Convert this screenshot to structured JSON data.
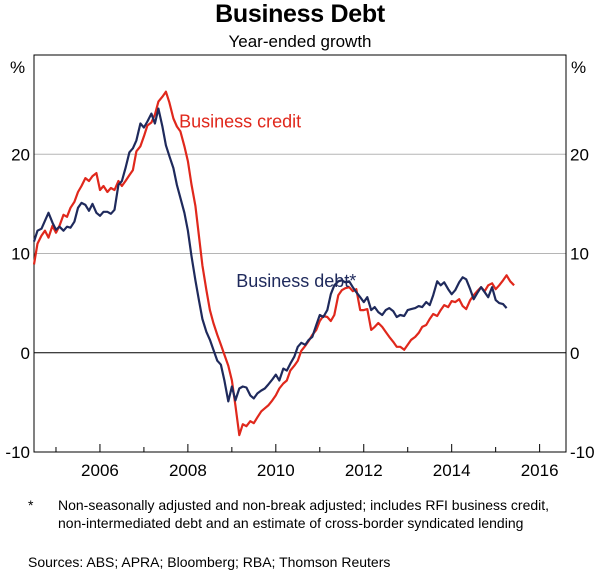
{
  "chart_data": {
    "type": "line",
    "title": "Business Debt",
    "subtitle": "Year-ended growth",
    "y_unit_left": "%",
    "y_unit_right": "%",
    "ylim": [
      -10,
      30
    ],
    "xlim": [
      2004.5,
      2016.6
    ],
    "y_ticks": [
      -10,
      0,
      10,
      20
    ],
    "x_ticks": [
      "2006",
      "2008",
      "2010",
      "2012",
      "2014",
      "2016"
    ],
    "x_tick_values": [
      2006,
      2008,
      2010,
      2012,
      2014,
      2016
    ],
    "grid": true,
    "series": [
      {
        "name": "Business credit",
        "color": "#e0281c",
        "points": [
          [
            2004.5,
            8.9
          ],
          [
            2004.58,
            11.0
          ],
          [
            2004.67,
            11.8
          ],
          [
            2004.75,
            12.3
          ],
          [
            2004.83,
            11.6
          ],
          [
            2004.92,
            12.8
          ],
          [
            2005.0,
            12.1
          ],
          [
            2005.08,
            12.8
          ],
          [
            2005.17,
            13.9
          ],
          [
            2005.25,
            13.7
          ],
          [
            2005.33,
            14.6
          ],
          [
            2005.42,
            15.2
          ],
          [
            2005.5,
            16.2
          ],
          [
            2005.58,
            16.8
          ],
          [
            2005.67,
            17.6
          ],
          [
            2005.75,
            17.3
          ],
          [
            2005.83,
            17.8
          ],
          [
            2005.92,
            18.1
          ],
          [
            2006.0,
            16.4
          ],
          [
            2006.08,
            16.8
          ],
          [
            2006.17,
            16.2
          ],
          [
            2006.25,
            16.6
          ],
          [
            2006.33,
            16.4
          ],
          [
            2006.42,
            17.3
          ],
          [
            2006.5,
            16.8
          ],
          [
            2006.58,
            17.3
          ],
          [
            2006.67,
            17.9
          ],
          [
            2006.75,
            18.4
          ],
          [
            2006.83,
            20.3
          ],
          [
            2006.92,
            20.8
          ],
          [
            2007.0,
            21.8
          ],
          [
            2007.08,
            22.9
          ],
          [
            2007.17,
            23.2
          ],
          [
            2007.25,
            24.0
          ],
          [
            2007.33,
            25.3
          ],
          [
            2007.42,
            25.8
          ],
          [
            2007.5,
            26.3
          ],
          [
            2007.58,
            25.2
          ],
          [
            2007.67,
            23.6
          ],
          [
            2007.75,
            22.8
          ],
          [
            2007.83,
            22.3
          ],
          [
            2007.92,
            20.8
          ],
          [
            2008.0,
            19.3
          ],
          [
            2008.08,
            17.0
          ],
          [
            2008.17,
            14.8
          ],
          [
            2008.25,
            11.8
          ],
          [
            2008.33,
            8.8
          ],
          [
            2008.42,
            6.3
          ],
          [
            2008.5,
            4.3
          ],
          [
            2008.58,
            3.0
          ],
          [
            2008.67,
            1.8
          ],
          [
            2008.75,
            0.8
          ],
          [
            2008.83,
            -0.2
          ],
          [
            2008.92,
            -1.3
          ],
          [
            2009.0,
            -2.8
          ],
          [
            2009.08,
            -5.3
          ],
          [
            2009.17,
            -8.3
          ],
          [
            2009.25,
            -7.2
          ],
          [
            2009.33,
            -7.4
          ],
          [
            2009.42,
            -6.9
          ],
          [
            2009.5,
            -7.1
          ],
          [
            2009.58,
            -6.5
          ],
          [
            2009.67,
            -5.9
          ],
          [
            2009.75,
            -5.6
          ],
          [
            2009.83,
            -5.3
          ],
          [
            2009.92,
            -4.8
          ],
          [
            2010.0,
            -4.3
          ],
          [
            2010.08,
            -3.6
          ],
          [
            2010.17,
            -3.1
          ],
          [
            2010.25,
            -2.8
          ],
          [
            2010.33,
            -1.8
          ],
          [
            2010.42,
            -1.3
          ],
          [
            2010.5,
            -0.8
          ],
          [
            2010.58,
            0.2
          ],
          [
            2010.67,
            0.7
          ],
          [
            2010.75,
            1.2
          ],
          [
            2010.83,
            1.8
          ],
          [
            2010.92,
            2.3
          ],
          [
            2011.0,
            3.2
          ],
          [
            2011.08,
            3.7
          ],
          [
            2011.17,
            3.6
          ],
          [
            2011.25,
            3.2
          ],
          [
            2011.33,
            3.8
          ],
          [
            2011.42,
            5.8
          ],
          [
            2011.5,
            6.3
          ],
          [
            2011.58,
            6.5
          ],
          [
            2011.67,
            6.6
          ],
          [
            2011.75,
            6.2
          ],
          [
            2011.83,
            6.4
          ],
          [
            2011.92,
            4.3
          ],
          [
            2012.0,
            4.3
          ],
          [
            2012.08,
            4.4
          ],
          [
            2012.17,
            2.3
          ],
          [
            2012.25,
            2.6
          ],
          [
            2012.33,
            3.0
          ],
          [
            2012.42,
            2.6
          ],
          [
            2012.5,
            2.1
          ],
          [
            2012.58,
            1.6
          ],
          [
            2012.67,
            1.1
          ],
          [
            2012.75,
            0.6
          ],
          [
            2012.83,
            0.6
          ],
          [
            2012.92,
            0.3
          ],
          [
            2013.0,
            0.8
          ],
          [
            2013.08,
            1.3
          ],
          [
            2013.17,
            1.6
          ],
          [
            2013.25,
            2.0
          ],
          [
            2013.33,
            2.6
          ],
          [
            2013.42,
            2.8
          ],
          [
            2013.5,
            3.4
          ],
          [
            2013.58,
            3.9
          ],
          [
            2013.67,
            3.7
          ],
          [
            2013.75,
            4.3
          ],
          [
            2013.83,
            4.8
          ],
          [
            2013.92,
            4.6
          ],
          [
            2014.0,
            5.2
          ],
          [
            2014.08,
            5.1
          ],
          [
            2014.17,
            5.4
          ],
          [
            2014.25,
            4.7
          ],
          [
            2014.33,
            4.4
          ],
          [
            2014.42,
            5.3
          ],
          [
            2014.5,
            5.8
          ],
          [
            2014.58,
            6.2
          ],
          [
            2014.67,
            6.6
          ],
          [
            2014.75,
            6.2
          ],
          [
            2014.83,
            6.8
          ],
          [
            2014.92,
            7.0
          ],
          [
            2015.0,
            6.4
          ],
          [
            2015.08,
            6.8
          ],
          [
            2015.17,
            7.3
          ],
          [
            2015.25,
            7.8
          ],
          [
            2015.33,
            7.2
          ],
          [
            2015.42,
            6.8
          ]
        ]
      },
      {
        "name": "Business debt*",
        "color": "#1f2a5c",
        "points": [
          [
            2004.5,
            11.2
          ],
          [
            2004.58,
            12.3
          ],
          [
            2004.67,
            12.5
          ],
          [
            2004.75,
            13.3
          ],
          [
            2004.83,
            14.1
          ],
          [
            2004.92,
            13.1
          ],
          [
            2005.0,
            12.4
          ],
          [
            2005.08,
            12.7
          ],
          [
            2005.17,
            12.3
          ],
          [
            2005.25,
            12.7
          ],
          [
            2005.33,
            12.6
          ],
          [
            2005.42,
            13.2
          ],
          [
            2005.5,
            14.6
          ],
          [
            2005.58,
            15.1
          ],
          [
            2005.67,
            14.9
          ],
          [
            2005.75,
            14.3
          ],
          [
            2005.83,
            15.0
          ],
          [
            2005.92,
            14.1
          ],
          [
            2006.0,
            13.8
          ],
          [
            2006.08,
            14.2
          ],
          [
            2006.17,
            14.2
          ],
          [
            2006.25,
            14.0
          ],
          [
            2006.33,
            14.4
          ],
          [
            2006.42,
            16.9
          ],
          [
            2006.5,
            17.3
          ],
          [
            2006.58,
            18.6
          ],
          [
            2006.67,
            20.2
          ],
          [
            2006.75,
            20.6
          ],
          [
            2006.83,
            21.4
          ],
          [
            2006.92,
            23.1
          ],
          [
            2007.0,
            22.7
          ],
          [
            2007.08,
            23.3
          ],
          [
            2007.17,
            24.1
          ],
          [
            2007.25,
            23.1
          ],
          [
            2007.33,
            24.6
          ],
          [
            2007.42,
            22.8
          ],
          [
            2007.5,
            20.9
          ],
          [
            2007.58,
            19.8
          ],
          [
            2007.67,
            18.6
          ],
          [
            2007.75,
            16.9
          ],
          [
            2007.83,
            15.6
          ],
          [
            2007.92,
            14.1
          ],
          [
            2008.0,
            12.3
          ],
          [
            2008.08,
            9.8
          ],
          [
            2008.17,
            7.3
          ],
          [
            2008.25,
            5.3
          ],
          [
            2008.33,
            3.4
          ],
          [
            2008.42,
            2.1
          ],
          [
            2008.5,
            1.3
          ],
          [
            2008.58,
            0.3
          ],
          [
            2008.67,
            -0.8
          ],
          [
            2008.75,
            -1.2
          ],
          [
            2008.83,
            -2.8
          ],
          [
            2008.92,
            -4.9
          ],
          [
            2009.0,
            -3.4
          ],
          [
            2009.08,
            -4.8
          ],
          [
            2009.17,
            -3.6
          ],
          [
            2009.25,
            -3.4
          ],
          [
            2009.33,
            -3.5
          ],
          [
            2009.42,
            -4.3
          ],
          [
            2009.5,
            -4.6
          ],
          [
            2009.58,
            -4.1
          ],
          [
            2009.67,
            -3.8
          ],
          [
            2009.75,
            -3.6
          ],
          [
            2009.83,
            -3.2
          ],
          [
            2009.92,
            -2.7
          ],
          [
            2010.0,
            -2.2
          ],
          [
            2010.08,
            -2.8
          ],
          [
            2010.17,
            -1.6
          ],
          [
            2010.25,
            -1.8
          ],
          [
            2010.33,
            -1.1
          ],
          [
            2010.42,
            -0.4
          ],
          [
            2010.5,
            0.6
          ],
          [
            2010.58,
            1.0
          ],
          [
            2010.67,
            0.8
          ],
          [
            2010.75,
            1.3
          ],
          [
            2010.83,
            1.6
          ],
          [
            2010.92,
            2.8
          ],
          [
            2011.0,
            3.8
          ],
          [
            2011.08,
            3.6
          ],
          [
            2011.17,
            4.3
          ],
          [
            2011.25,
            5.9
          ],
          [
            2011.33,
            6.8
          ],
          [
            2011.42,
            7.2
          ],
          [
            2011.5,
            7.3
          ],
          [
            2011.58,
            7.1
          ],
          [
            2011.67,
            7.2
          ],
          [
            2011.75,
            6.6
          ],
          [
            2011.83,
            6.1
          ],
          [
            2011.92,
            5.6
          ],
          [
            2012.0,
            5.1
          ],
          [
            2012.08,
            5.6
          ],
          [
            2012.17,
            4.3
          ],
          [
            2012.25,
            4.6
          ],
          [
            2012.33,
            4.1
          ],
          [
            2012.42,
            3.8
          ],
          [
            2012.5,
            4.3
          ],
          [
            2012.58,
            4.5
          ],
          [
            2012.67,
            4.2
          ],
          [
            2012.75,
            3.6
          ],
          [
            2012.83,
            3.8
          ],
          [
            2012.92,
            3.7
          ],
          [
            2013.0,
            4.3
          ],
          [
            2013.08,
            4.4
          ],
          [
            2013.17,
            4.5
          ],
          [
            2013.25,
            4.7
          ],
          [
            2013.33,
            4.6
          ],
          [
            2013.42,
            5.1
          ],
          [
            2013.5,
            4.8
          ],
          [
            2013.58,
            5.8
          ],
          [
            2013.67,
            7.2
          ],
          [
            2013.75,
            6.8
          ],
          [
            2013.83,
            7.1
          ],
          [
            2013.92,
            6.4
          ],
          [
            2014.0,
            5.9
          ],
          [
            2014.08,
            6.3
          ],
          [
            2014.17,
            7.1
          ],
          [
            2014.25,
            7.6
          ],
          [
            2014.33,
            7.4
          ],
          [
            2014.42,
            6.4
          ],
          [
            2014.5,
            5.4
          ],
          [
            2014.58,
            6.0
          ],
          [
            2014.67,
            6.6
          ],
          [
            2014.75,
            6.1
          ],
          [
            2014.83,
            5.6
          ],
          [
            2014.92,
            6.6
          ],
          [
            2015.0,
            5.3
          ],
          [
            2015.08,
            5.0
          ],
          [
            2015.17,
            4.9
          ],
          [
            2015.25,
            4.5
          ]
        ]
      }
    ],
    "annotations": [
      {
        "text": "Business credit",
        "series": 0,
        "x": 2007.8,
        "y": 22.7
      },
      {
        "text": "Business debt*",
        "series": 1,
        "x": 2009.1,
        "y": 6.6
      }
    ]
  },
  "footnote": {
    "mark": "*",
    "text": "Non-seasonally adjusted and non-break adjusted; includes RFI business credit, non-intermediated debt and an estimate of cross-border syndicated lending"
  },
  "sources": "Sources:   ABS; APRA; Bloomberg; RBA; Thomson Reuters"
}
